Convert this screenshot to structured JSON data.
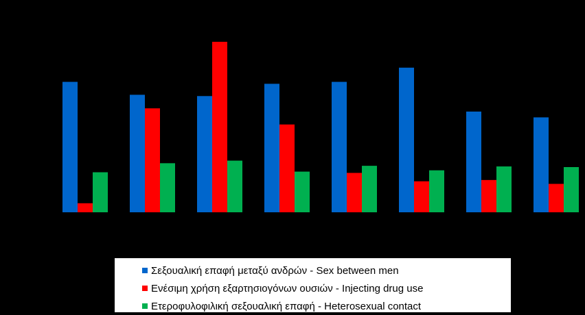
{
  "chart_data": {
    "type": "bar",
    "categories": [
      "",
      "",
      "",
      "",
      "",
      "",
      "",
      ""
    ],
    "series": [
      {
        "name": "Σεξουαλική επαφή μεταξύ ανδρών - Sex between men",
        "color": "#0066CC",
        "values": [
          202,
          182,
          180,
          199,
          202,
          224,
          156,
          147
        ]
      },
      {
        "name": "Ενέσιμη χρήση εξαρτησιογόνων ουσιών - Injecting drug use",
        "color": "#FF0000",
        "values": [
          14,
          161,
          264,
          136,
          61,
          48,
          50,
          44
        ]
      },
      {
        "name": "Ετεροφυλοφιλική σεξουαλική επαφή - Heterosexual  contact",
        "color": "#00B050",
        "values": [
          62,
          76,
          80,
          63,
          72,
          65,
          71,
          70
        ]
      }
    ],
    "ylim": [
      0,
      280
    ],
    "grid": false,
    "legend": "bottom"
  }
}
